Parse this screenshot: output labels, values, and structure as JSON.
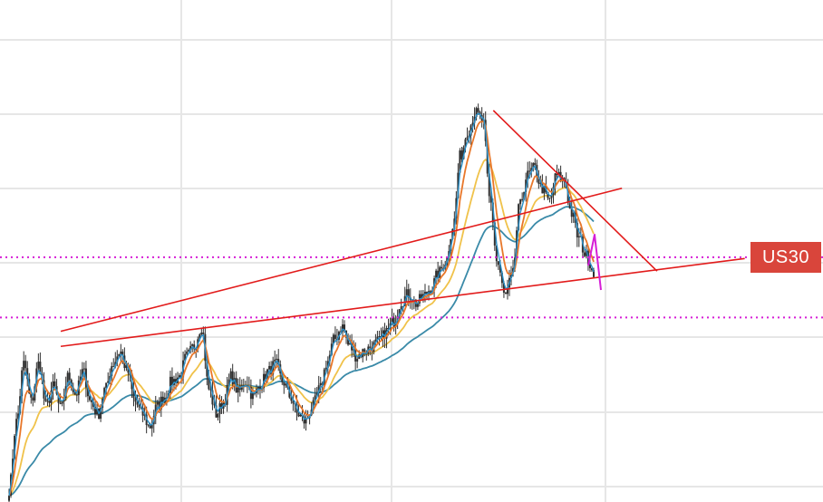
{
  "symbol": "US30",
  "colors": {
    "grid": "#e6e6e6",
    "candle": "#2f2f2f",
    "ema_fast": "#2a8fc7",
    "ema_mid": "#e8772a",
    "ema_slow": "#f0c24a",
    "ema_long": "#3a8aa8",
    "trendline": "#e21b1b",
    "level": "#d61fd6",
    "badge": "#d9453b"
  },
  "chart_data": {
    "type": "line",
    "series": [
      {
        "kind": "price",
        "values": [
          0.05,
          0.32,
          0.55,
          0.4,
          0.55,
          0.38,
          0.46,
          0.37,
          0.5,
          0.43,
          0.52,
          0.4,
          0.35,
          0.45,
          0.55,
          0.6,
          0.52,
          0.4,
          0.35,
          0.3,
          0.38,
          0.42,
          0.48,
          0.5,
          0.58,
          0.62,
          0.7,
          0.45,
          0.35,
          0.4,
          0.5,
          0.44,
          0.48,
          0.42,
          0.47,
          0.52,
          0.55,
          0.48,
          0.42,
          0.35,
          0.32,
          0.38,
          0.45,
          0.56,
          0.65,
          0.7,
          0.62,
          0.58,
          0.6,
          0.62,
          0.64,
          0.68,
          0.72,
          0.8,
          0.83,
          0.79,
          0.82,
          0.85,
          0.91,
          0.96,
          1.1,
          1.38,
          1.48,
          1.55,
          1.52,
          1.2,
          0.95,
          0.82,
          0.9,
          1.18,
          1.3,
          1.33,
          1.25,
          1.2,
          1.3,
          1.28,
          1.15,
          1.05,
          0.98,
          0.92
        ]
      },
      {
        "kind": "ema-fast"
      },
      {
        "kind": "ema-mid"
      },
      {
        "kind": "ema-slow"
      },
      {
        "kind": "ema-long"
      }
    ],
    "trendlines": [
      {
        "from": [
          0.0,
          0.68
        ],
        "to": [
          0.96,
          1.25
        ]
      },
      {
        "from": [
          0.0,
          0.62
        ],
        "to": [
          1.17,
          0.97
        ]
      },
      {
        "from": [
          0.74,
          1.56
        ],
        "to": [
          1.02,
          0.92
        ]
      }
    ],
    "horizontal_levels": [
      0.975,
      0.735
    ],
    "annotations": [
      {
        "type": "arrow",
        "color": "level"
      }
    ]
  }
}
